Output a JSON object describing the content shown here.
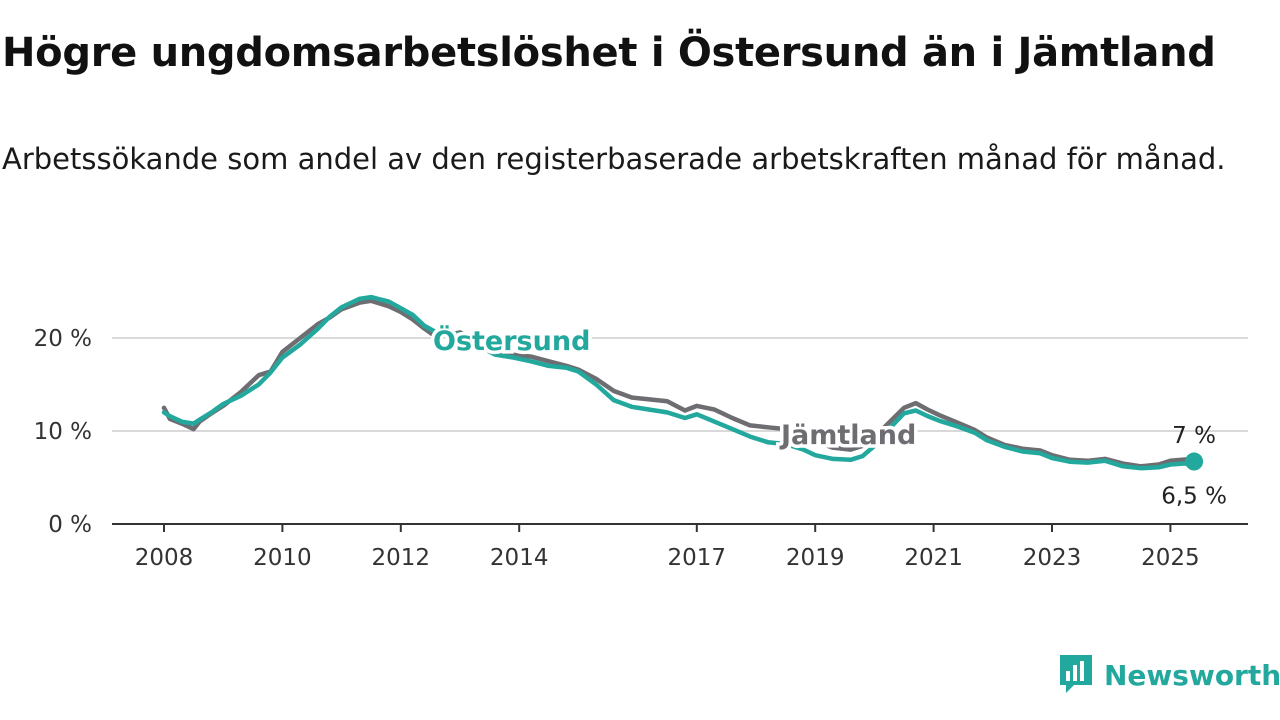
{
  "title": "Högre ungdomsarbetslöshet i Östersund än i Jämtland",
  "subtitle": "Arbetssökande som andel av den registerbaserade arbetskraften månad för månad.",
  "brand": {
    "name": "Newsworthy",
    "color": "#23a89d"
  },
  "chart_data": {
    "type": "line",
    "title": "Högre ungdomsarbetslöshet i Östersund än i Jämtland",
    "subtitle": "Arbetssökande som andel av den registerbaserade arbetskraften månad för månad.",
    "x_ticks": [
      "2008",
      "2010",
      "2012",
      "2014",
      "2017",
      "2019",
      "2021",
      "2023",
      "2025"
    ],
    "x_range": [
      2007.6,
      2026.4
    ],
    "y_ticks": [
      0,
      10,
      20
    ],
    "y_tick_labels": [
      "0 %",
      "10 %",
      "20 %"
    ],
    "y_range": [
      0,
      22
    ],
    "grid": "horizontal",
    "series": [
      {
        "name": "Jämtland",
        "color": "#6d6d72",
        "end_label": "7 %",
        "points": [
          [
            2008.0,
            12.5
          ],
          [
            2008.1,
            11.3
          ],
          [
            2008.3,
            10.8
          ],
          [
            2008.5,
            10.2
          ],
          [
            2008.6,
            11.0
          ],
          [
            2008.8,
            11.9
          ],
          [
            2009.0,
            12.7
          ],
          [
            2009.3,
            14.2
          ],
          [
            2009.6,
            16.0
          ],
          [
            2009.8,
            16.4
          ],
          [
            2010.0,
            18.5
          ],
          [
            2010.3,
            20.0
          ],
          [
            2010.6,
            21.5
          ],
          [
            2010.8,
            22.2
          ],
          [
            2011.0,
            23.1
          ],
          [
            2011.3,
            23.8
          ],
          [
            2011.5,
            24.0
          ],
          [
            2011.8,
            23.4
          ],
          [
            2012.0,
            22.8
          ],
          [
            2012.2,
            22.0
          ],
          [
            2012.4,
            21.0
          ],
          [
            2012.6,
            20.1
          ],
          [
            2013.0,
            20.6
          ],
          [
            2013.3,
            19.6
          ],
          [
            2013.6,
            18.6
          ],
          [
            2013.9,
            18.2
          ],
          [
            2014.2,
            18.0
          ],
          [
            2014.5,
            17.5
          ],
          [
            2014.8,
            17.0
          ],
          [
            2015.0,
            16.6
          ],
          [
            2015.3,
            15.6
          ],
          [
            2015.6,
            14.3
          ],
          [
            2015.9,
            13.6
          ],
          [
            2016.2,
            13.4
          ],
          [
            2016.5,
            13.2
          ],
          [
            2016.8,
            12.2
          ],
          [
            2017.0,
            12.7
          ],
          [
            2017.3,
            12.3
          ],
          [
            2017.6,
            11.4
          ],
          [
            2017.9,
            10.6
          ],
          [
            2018.2,
            10.4
          ],
          [
            2018.5,
            10.2
          ],
          [
            2018.8,
            9.5
          ],
          [
            2019.0,
            8.9
          ],
          [
            2019.3,
            8.2
          ],
          [
            2019.6,
            8.0
          ],
          [
            2019.8,
            8.4
          ],
          [
            2020.0,
            9.3
          ],
          [
            2020.2,
            10.6
          ],
          [
            2020.5,
            12.5
          ],
          [
            2020.7,
            13.0
          ],
          [
            2020.9,
            12.3
          ],
          [
            2021.1,
            11.7
          ],
          [
            2021.4,
            10.9
          ],
          [
            2021.7,
            10.1
          ],
          [
            2021.9,
            9.3
          ],
          [
            2022.2,
            8.5
          ],
          [
            2022.5,
            8.1
          ],
          [
            2022.8,
            7.9
          ],
          [
            2023.0,
            7.4
          ],
          [
            2023.3,
            6.9
          ],
          [
            2023.6,
            6.8
          ],
          [
            2023.9,
            7.0
          ],
          [
            2024.2,
            6.5
          ],
          [
            2024.5,
            6.2
          ],
          [
            2024.8,
            6.4
          ],
          [
            2025.0,
            6.8
          ],
          [
            2025.2,
            6.9
          ],
          [
            2025.4,
            7.0
          ]
        ]
      },
      {
        "name": "Östersund",
        "color": "#23a89d",
        "end_label": "6,5 %",
        "points": [
          [
            2008.0,
            12.0
          ],
          [
            2008.1,
            11.6
          ],
          [
            2008.3,
            11.0
          ],
          [
            2008.5,
            10.8
          ],
          [
            2008.6,
            11.2
          ],
          [
            2008.8,
            12.0
          ],
          [
            2009.0,
            12.9
          ],
          [
            2009.3,
            13.8
          ],
          [
            2009.6,
            15.0
          ],
          [
            2009.8,
            16.3
          ],
          [
            2010.0,
            17.9
          ],
          [
            2010.3,
            19.3
          ],
          [
            2010.6,
            21.0
          ],
          [
            2010.8,
            22.3
          ],
          [
            2011.0,
            23.3
          ],
          [
            2011.3,
            24.2
          ],
          [
            2011.5,
            24.4
          ],
          [
            2011.8,
            23.9
          ],
          [
            2012.0,
            23.2
          ],
          [
            2012.2,
            22.5
          ],
          [
            2012.4,
            21.3
          ],
          [
            2012.6,
            20.6
          ],
          [
            2013.0,
            20.4
          ],
          [
            2013.3,
            19.2
          ],
          [
            2013.6,
            18.2
          ],
          [
            2013.9,
            17.9
          ],
          [
            2014.2,
            17.5
          ],
          [
            2014.5,
            17.0
          ],
          [
            2014.8,
            16.8
          ],
          [
            2015.0,
            16.4
          ],
          [
            2015.3,
            15.0
          ],
          [
            2015.6,
            13.3
          ],
          [
            2015.9,
            12.6
          ],
          [
            2016.2,
            12.3
          ],
          [
            2016.5,
            12.0
          ],
          [
            2016.8,
            11.4
          ],
          [
            2017.0,
            11.8
          ],
          [
            2017.3,
            11.0
          ],
          [
            2017.6,
            10.2
          ],
          [
            2017.9,
            9.4
          ],
          [
            2018.2,
            8.8
          ],
          [
            2018.5,
            8.6
          ],
          [
            2018.8,
            8.0
          ],
          [
            2019.0,
            7.4
          ],
          [
            2019.3,
            7.0
          ],
          [
            2019.6,
            6.9
          ],
          [
            2019.8,
            7.3
          ],
          [
            2020.0,
            8.4
          ],
          [
            2020.2,
            9.9
          ],
          [
            2020.5,
            11.9
          ],
          [
            2020.7,
            12.2
          ],
          [
            2020.9,
            11.6
          ],
          [
            2021.1,
            11.1
          ],
          [
            2021.4,
            10.5
          ],
          [
            2021.7,
            9.8
          ],
          [
            2021.9,
            9.0
          ],
          [
            2022.2,
            8.3
          ],
          [
            2022.5,
            7.8
          ],
          [
            2022.8,
            7.6
          ],
          [
            2023.0,
            7.1
          ],
          [
            2023.3,
            6.7
          ],
          [
            2023.6,
            6.6
          ],
          [
            2023.9,
            6.8
          ],
          [
            2024.2,
            6.2
          ],
          [
            2024.5,
            6.0
          ],
          [
            2024.8,
            6.1
          ],
          [
            2025.0,
            6.4
          ],
          [
            2025.2,
            6.5
          ],
          [
            2025.4,
            6.5
          ]
        ]
      }
    ]
  }
}
